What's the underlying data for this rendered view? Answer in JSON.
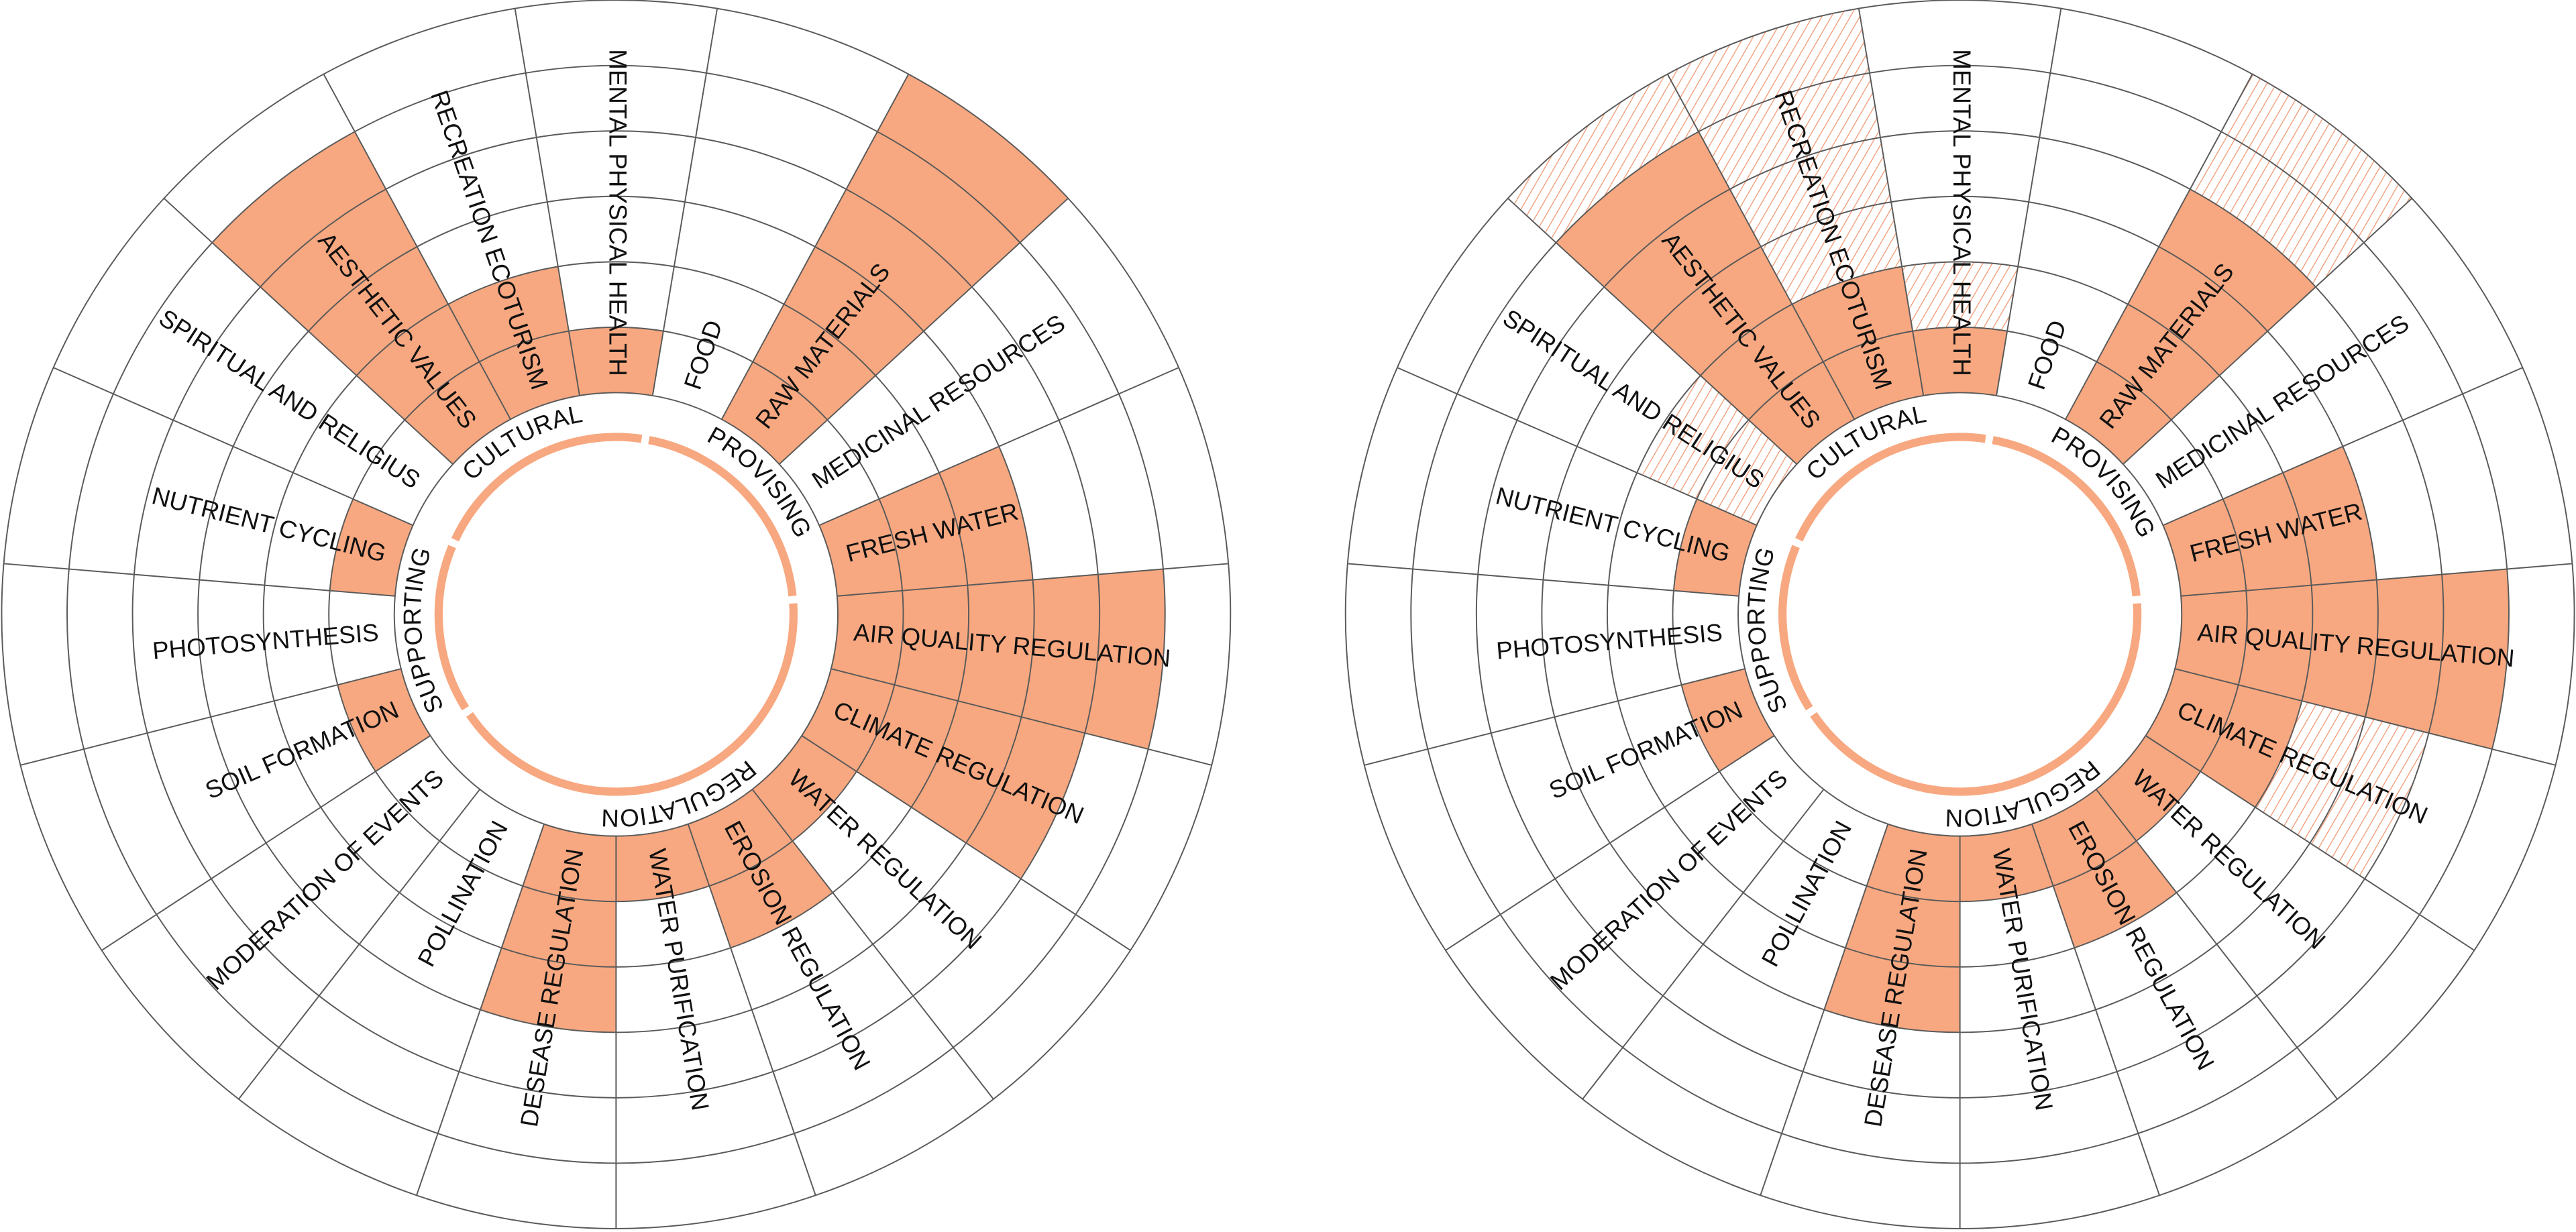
{
  "chart_data": [
    {
      "type": "radial",
      "categories": [
        "MENTAL PHYSICAL HEALTH",
        "FOOD",
        "RAW MATERIALS",
        "MEDICINAL RESOURCES",
        "FRESH WATER",
        "AIR QUALITY REGULATION",
        "CLIMATE REGULATION",
        "WATER REGULATION",
        "EROSION REGULATION",
        "WATER PURIFICATION",
        "DESEASE REGULATION",
        "POLLINATION",
        "MODERATION OF EVENTS",
        "SOIL FORMATION",
        "PHOTOSYNTHESIS",
        "NUTRIENT CYCLING",
        "SPIRITUAL AND RELIGIUS",
        "AESTHETIC VALUES",
        "RECREATION ECOTURISM"
      ],
      "values": [
        1,
        0,
        6,
        0,
        3,
        5,
        4,
        1,
        2,
        1,
        3,
        0,
        0,
        1,
        0,
        1,
        0,
        5,
        2
      ],
      "color": "#f7a880",
      "groups": [
        {
          "label": "CULTURAL",
          "sectors": [
            16,
            17,
            18,
            0
          ]
        },
        {
          "label": "PROVISING",
          "sectors": [
            1,
            2,
            3,
            4
          ]
        },
        {
          "label": "REGULATION",
          "sectors": [
            5,
            6,
            7,
            8,
            9,
            10,
            11,
            12
          ]
        },
        {
          "label": "SUPPORTING",
          "sectors": [
            13,
            14,
            15
          ]
        }
      ],
      "rlim": [
        0,
        6
      ],
      "rticks": [
        0,
        1,
        2,
        3,
        4,
        5,
        6
      ]
    },
    {
      "type": "radial",
      "categories": [
        "MENTAL PHYSICAL HEALTH",
        "FOOD",
        "RAW MATERIALS",
        "MEDICINAL RESOURCES",
        "FRESH WATER",
        "AIR QUALITY REGULATION",
        "CLIMATE REGULATION",
        "WATER REGULATION",
        "EROSION REGULATION",
        "WATER PURIFICATION",
        "DESEASE REGULATION",
        "POLLINATION",
        "MODERATION OF EVENTS",
        "SOIL FORMATION",
        "PHOTOSYNTHESIS",
        "NUTRIENT CYCLING",
        "SPIRITUAL AND RELIGIUS",
        "AESTHETIC VALUES",
        "RECREATION ECOTURISM"
      ],
      "values": [
        1,
        0,
        4,
        0,
        3,
        5,
        2,
        1,
        2,
        1,
        3,
        0,
        0,
        1,
        0,
        1,
        0,
        5,
        2
      ],
      "hatched_values": [
        2,
        null,
        6,
        null,
        null,
        null,
        4,
        null,
        null,
        null,
        null,
        null,
        null,
        null,
        null,
        null,
        2,
        6,
        6
      ],
      "color": "#f7a880",
      "groups": [
        {
          "label": "CULTURAL",
          "sectors": [
            16,
            17,
            18,
            0
          ]
        },
        {
          "label": "PROVISING",
          "sectors": [
            1,
            2,
            3,
            4
          ]
        },
        {
          "label": "REGULATION",
          "sectors": [
            5,
            6,
            7,
            8,
            9,
            10,
            11,
            12
          ]
        },
        {
          "label": "SUPPORTING",
          "sectors": [
            13,
            14,
            15
          ]
        }
      ],
      "rlim": [
        0,
        6
      ],
      "rticks": [
        0,
        1,
        2,
        3,
        4,
        5,
        6
      ]
    }
  ]
}
